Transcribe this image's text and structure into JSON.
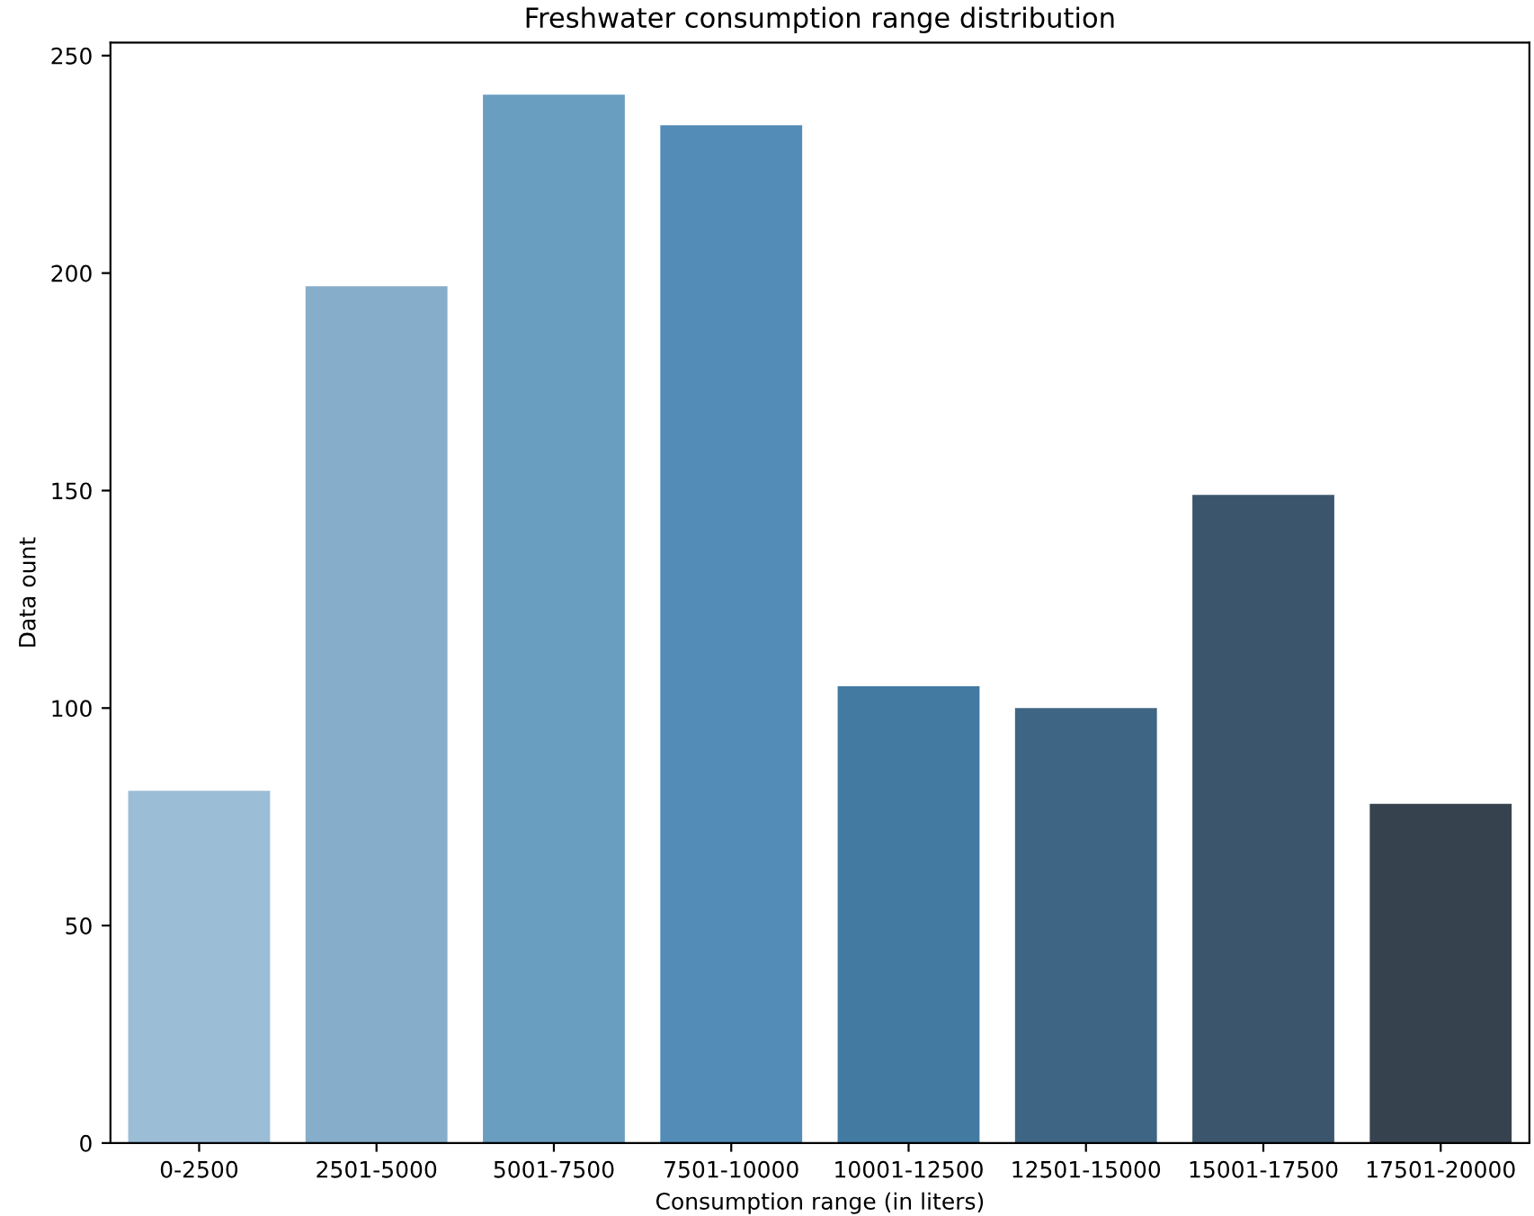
{
  "chart_data": {
    "type": "bar",
    "title": "Freshwater consumption range distribution",
    "xlabel": "Consumption range (in liters)",
    "ylabel": "Data ount",
    "categories": [
      "0-2500",
      "2501-5000",
      "5001-7500",
      "7501-10000",
      "10001-12500",
      "12501-15000",
      "15001-17500",
      "17501-20000"
    ],
    "values": [
      81,
      197,
      241,
      234,
      105,
      100,
      149,
      78
    ],
    "colors": [
      "#9bbdd6",
      "#86adca",
      "#6a9ec0",
      "#548cb8",
      "#437aa2",
      "#3f6584",
      "#3b566c",
      "#36434f"
    ],
    "ylim": [
      0,
      253
    ],
    "yticks": [
      0,
      50,
      100,
      150,
      200,
      250
    ],
    "grid": false,
    "legend": false
  }
}
